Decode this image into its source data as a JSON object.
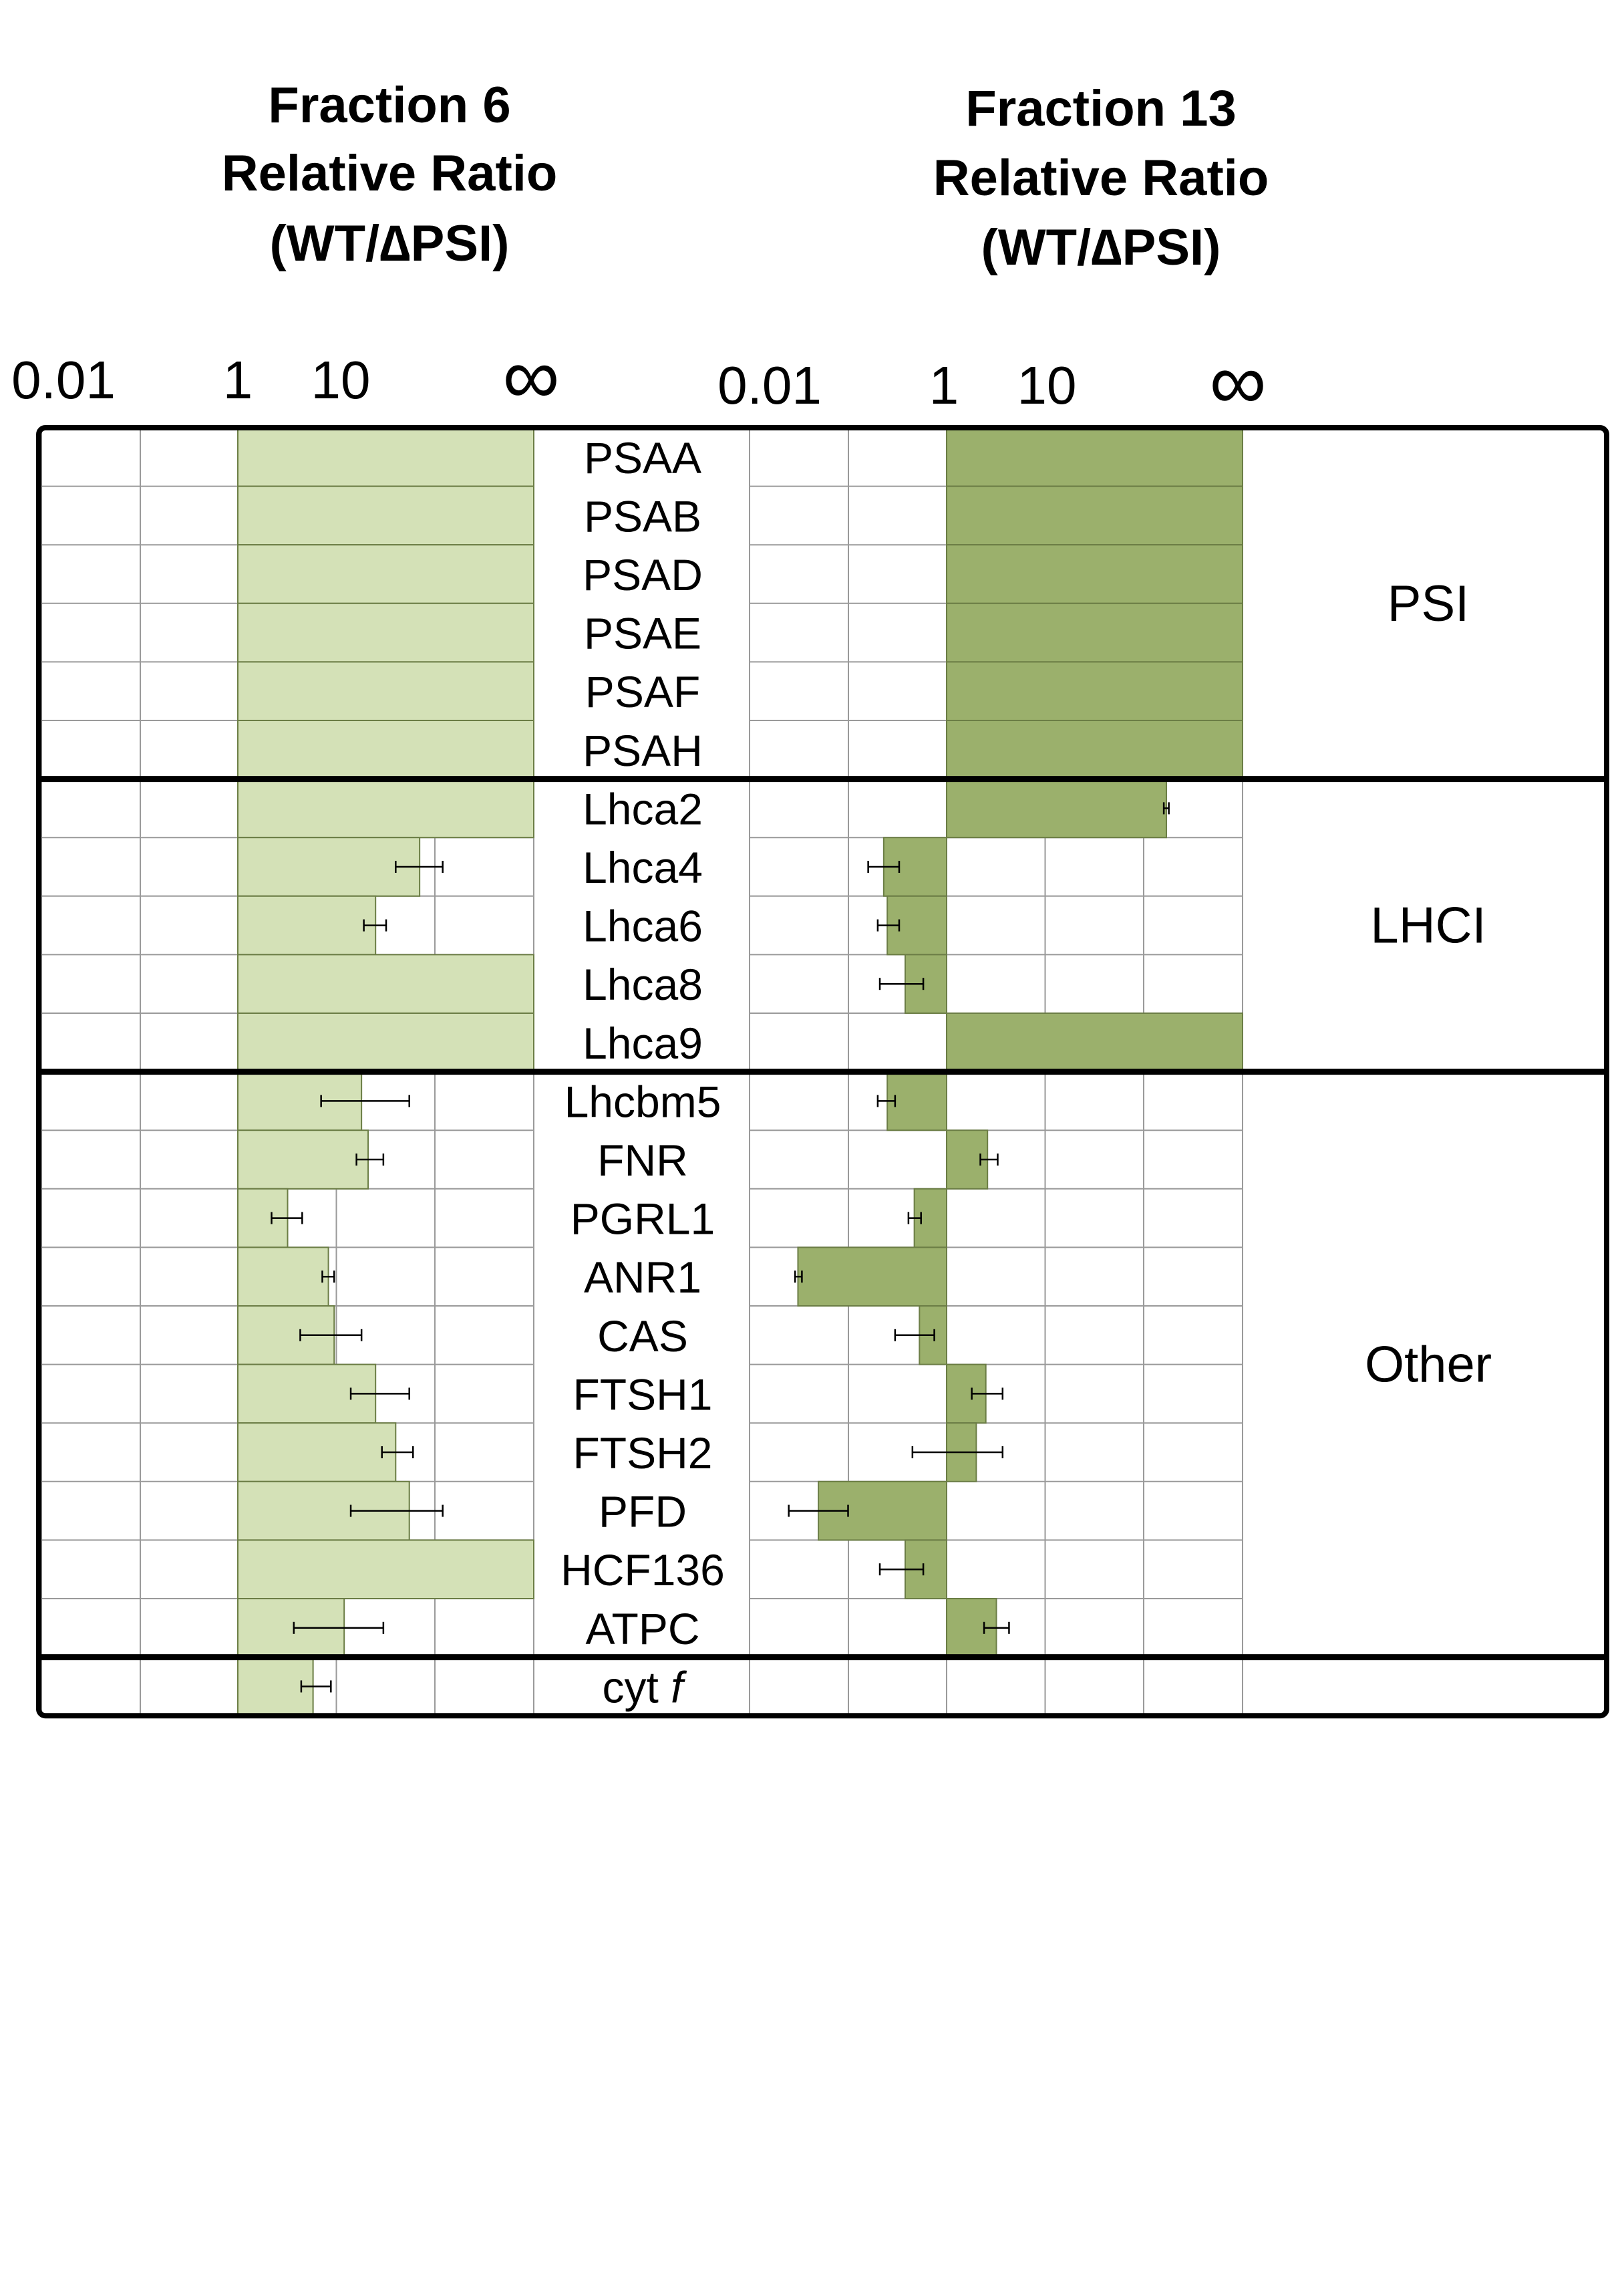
{
  "chart_data": [
    {
      "type": "bar",
      "orientation": "horizontal",
      "title_lines": [
        "Fraction 6",
        "Relative Ratio",
        "(WT/∆PSI)"
      ],
      "x_scale": "log",
      "x_ticks": [
        "0.01",
        "1",
        "10",
        "∞"
      ],
      "xlim": [
        0.01,
        "infinity"
      ],
      "bar_color": "#d4e1b7",
      "grid": true,
      "categories": [
        "PSAA",
        "PSAB",
        "PSAD",
        "PSAE",
        "PSAF",
        "PSAH",
        "Lhca2",
        "Lhca4",
        "Lhca6",
        "Lhca8",
        "Lhca9",
        "Lhcbm5",
        "FNR",
        "PGRL1",
        "ANR1",
        "CAS",
        "FTSH1",
        "FTSH2",
        "PFD",
        "HCF136",
        "ATPC",
        "cyt f"
      ],
      "values": [
        "infinity",
        "infinity",
        "infinity",
        "infinity",
        "infinity",
        "infinity",
        "infinity",
        70,
        25,
        "infinity",
        "infinity",
        18,
        21,
        3.2,
        8.3,
        9.5,
        25,
        40,
        55,
        "infinity",
        12,
        5.8
      ],
      "error_low": [
        null,
        null,
        null,
        null,
        null,
        null,
        null,
        40,
        19,
        null,
        null,
        7,
        16,
        2.2,
        7.2,
        4.3,
        14,
        29,
        14,
        null,
        3.7,
        4.4
      ],
      "error_high": [
        null,
        null,
        null,
        null,
        null,
        null,
        null,
        120,
        32,
        null,
        null,
        55,
        30,
        4.5,
        9.5,
        18,
        55,
        60,
        120,
        null,
        30,
        8.8
      ]
    },
    {
      "type": "bar",
      "orientation": "horizontal",
      "title_lines": [
        "Fraction 13",
        "Relative Ratio",
        "(WT/∆PSI)"
      ],
      "x_scale": "log",
      "x_ticks": [
        "0.01",
        "1",
        "10",
        "∞"
      ],
      "xlim": [
        0.01,
        "infinity"
      ],
      "bar_color": "#9bb06c",
      "grid": true,
      "categories": [
        "PSAA",
        "PSAB",
        "PSAD",
        "PSAE",
        "PSAF",
        "PSAH",
        "Lhca2",
        "Lhca4",
        "Lhca6",
        "Lhca8",
        "Lhca9",
        "Lhcbm5",
        "FNR",
        "PGRL1",
        "ANR1",
        "CAS",
        "FTSH1",
        "FTSH2",
        "PFD",
        "HCF136",
        "ATPC",
        "cyt f"
      ],
      "values": [
        "infinity",
        "infinity",
        "infinity",
        "infinity",
        "infinity",
        "infinity",
        170,
        0.23,
        0.25,
        0.38,
        "infinity",
        0.25,
        2.6,
        0.47,
        0.031,
        0.53,
        2.5,
        2.0,
        0.05,
        0.38,
        3.2,
        null
      ],
      "error_low": [
        null,
        null,
        null,
        null,
        null,
        null,
        160,
        0.16,
        0.2,
        0.21,
        null,
        0.2,
        2.2,
        0.41,
        0.029,
        0.3,
        1.8,
        0.45,
        0.025,
        0.21,
        2.4,
        null
      ],
      "error_high": [
        null,
        null,
        null,
        null,
        null,
        null,
        180,
        0.33,
        0.33,
        0.58,
        null,
        0.3,
        3.3,
        0.55,
        0.034,
        0.75,
        3.7,
        3.7,
        0.1,
        0.58,
        4.3,
        null
      ]
    }
  ],
  "rows": [
    {
      "label": "PSAA"
    },
    {
      "label": "PSAB"
    },
    {
      "label": "PSAD"
    },
    {
      "label": "PSAE"
    },
    {
      "label": "PSAF"
    },
    {
      "label": "PSAH"
    },
    {
      "label": "Lhca2"
    },
    {
      "label": "Lhca4"
    },
    {
      "label": "Lhca6"
    },
    {
      "label": "Lhca8"
    },
    {
      "label": "Lhca9"
    },
    {
      "label": "Lhcbm5"
    },
    {
      "label": "FNR"
    },
    {
      "label": "PGRL1"
    },
    {
      "label": "ANR1"
    },
    {
      "label": "CAS"
    },
    {
      "label": "FTSH1"
    },
    {
      "label": "FTSH2"
    },
    {
      "label": "PFD"
    },
    {
      "label": "HCF136"
    },
    {
      "label": "ATPC"
    },
    {
      "label_main": "cyt ",
      "label_italic": "f"
    }
  ],
  "groups": [
    {
      "label": "PSI",
      "row_start": 0,
      "row_end": 5
    },
    {
      "label": "LHCI",
      "row_start": 6,
      "row_end": 10
    },
    {
      "label": "Other",
      "row_start": 11,
      "row_end": 20
    },
    {
      "label": "",
      "row_start": 21,
      "row_end": 21
    }
  ]
}
